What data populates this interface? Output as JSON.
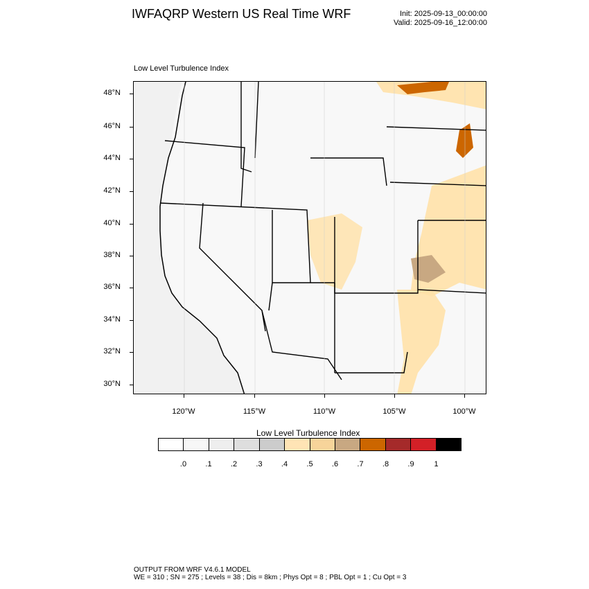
{
  "header": {
    "title": "IWFAQRP Western US Real Time WRF",
    "init": "Init: 2025-09-13_00:00:00",
    "valid": "Valid: 2025-09-16_12:00:00"
  },
  "map": {
    "title": "Low Level Turbulence Index",
    "lat_labels": [
      "48°N",
      "46°N",
      "44°N",
      "42°N",
      "40°N",
      "38°N",
      "36°N",
      "34°N",
      "32°N",
      "30°N"
    ],
    "lon_labels": [
      "120°W",
      "115°W",
      "110°W",
      "105°W",
      "100°W"
    ]
  },
  "colorbar": {
    "title": "Low Level Turbulence Index",
    "colors": [
      "#ffffff",
      "#f7f7f7",
      "#eeeeee",
      "#dedede",
      "#cccccc",
      "#ffe4b5",
      "#f7d49a",
      "#c8a882",
      "#cc6600",
      "#a52a2a",
      "#d32027",
      "#000000"
    ],
    "labels": [
      ".0",
      ".1",
      ".2",
      ".3",
      ".4",
      ".5",
      ".6",
      ".7",
      ".8",
      ".9",
      "1"
    ]
  },
  "footer": {
    "line1": "OUTPUT FROM WRF V4.6.1 MODEL",
    "line2": "WE = 310 ; SN = 275 ; Levels = 38 ; Dis = 8km ; Phys Opt = 8 ; PBL Opt = 1 ; Cu Opt = 3"
  }
}
